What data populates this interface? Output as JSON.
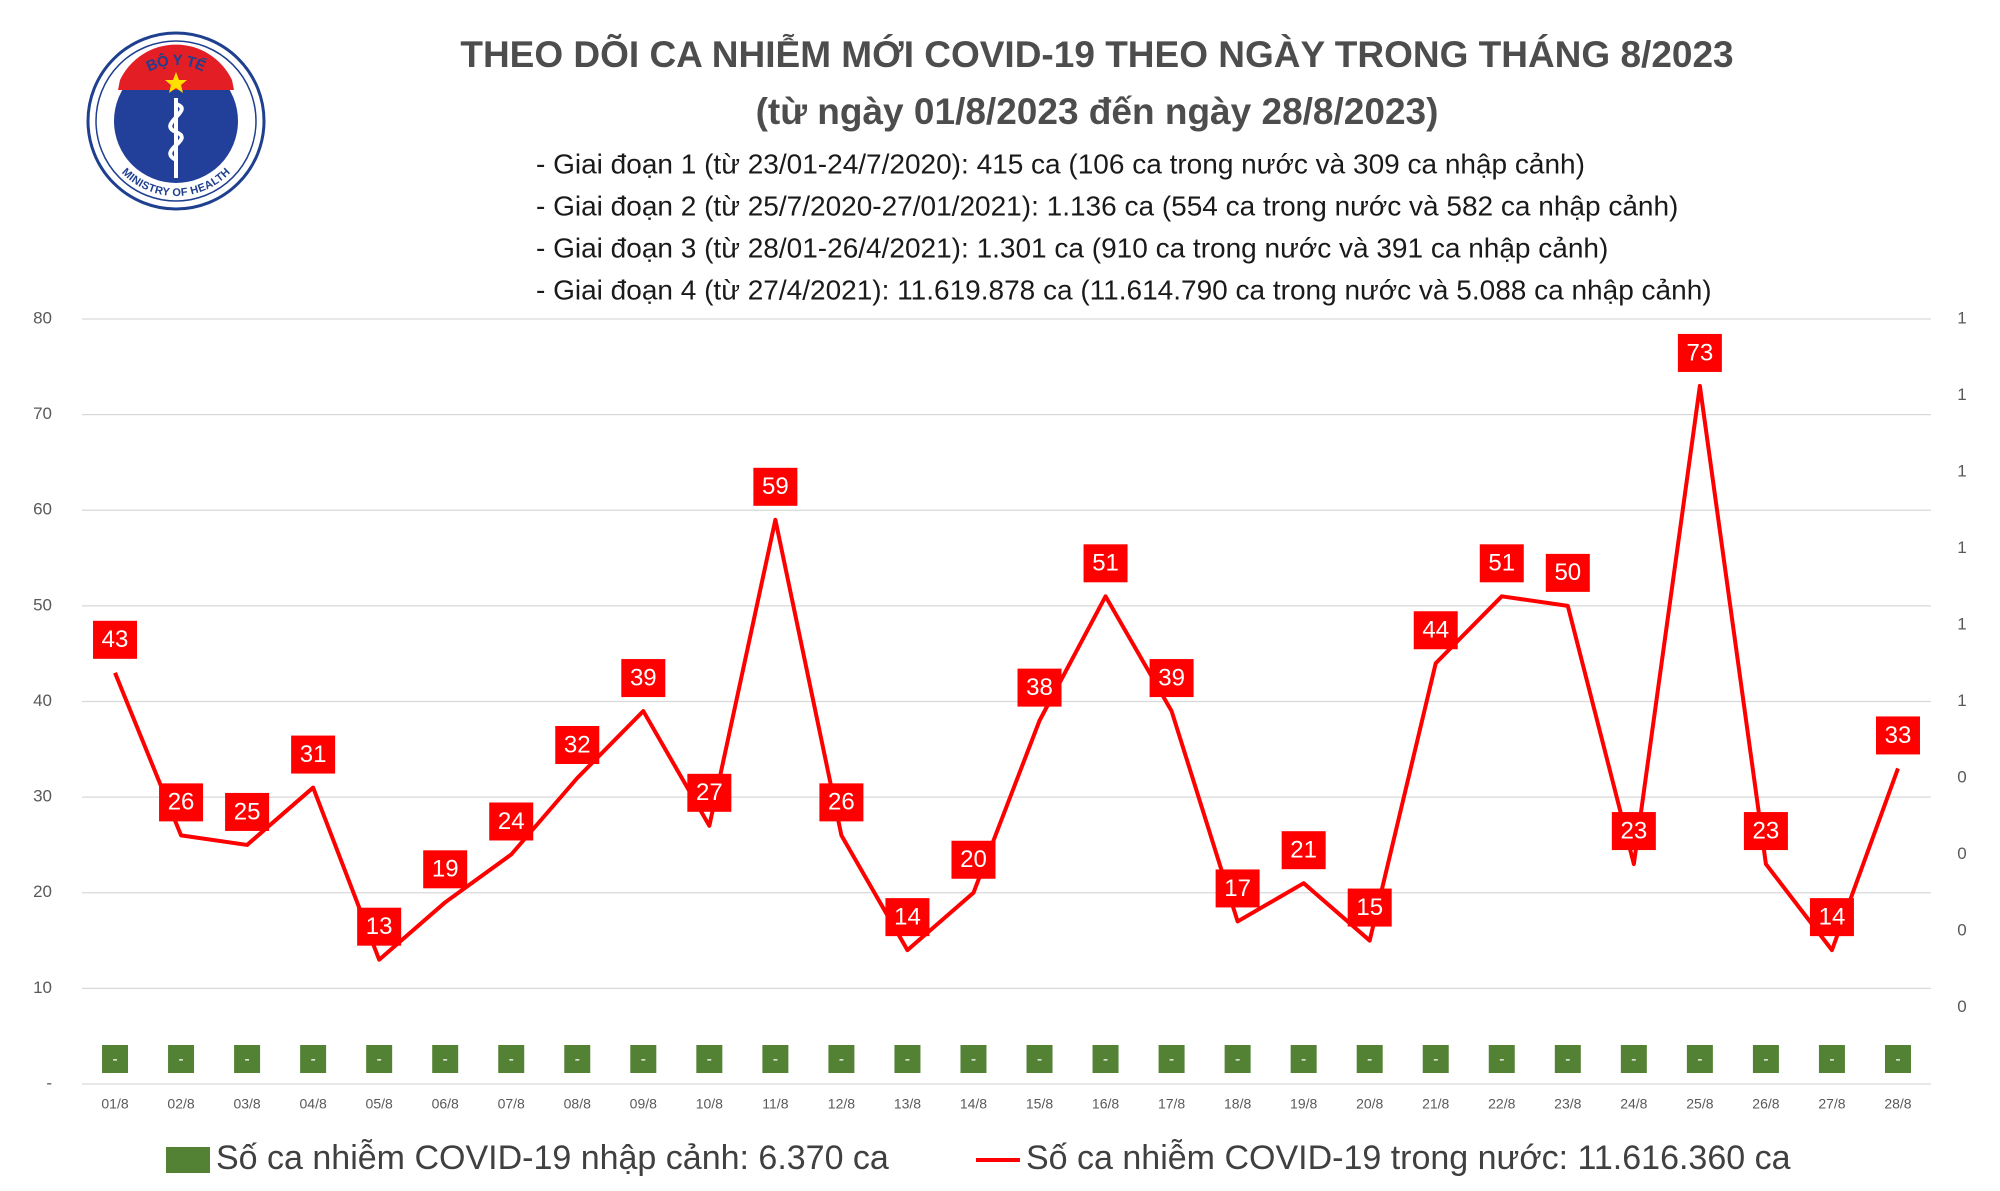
{
  "logo": {
    "top": "BỘ Y TẾ",
    "bottom": "MINISTRY OF HEALTH"
  },
  "chart_data": {
    "type": "combo",
    "title": "THEO DÕI CA NHIỄM MỚI COVID-19 THEO NGÀY TRONG THÁNG 8/2023",
    "subtitle": "(từ ngày 01/8/2023 đến ngày 28/8/2023)",
    "notes": [
      "- Giai đoạn 1 (từ 23/01-24/7/2020): 415 ca (106 ca trong nước và 309 ca nhập cảnh)",
      "- Giai đoạn 2 (từ 25/7/2020-27/01/2021): 1.136 ca (554 ca trong nước và 582 ca nhập cảnh)",
      "- Giai đoạn 3 (từ 28/01-26/4/2021): 1.301 ca (910 ca trong nước và 391 ca nhập cảnh)",
      "- Giai đoạn 4 (từ 27/4/2021): 11.619.878 ca (11.614.790 ca trong nước và 5.088 ca nhập cảnh)"
    ],
    "categories": [
      "01/8",
      "02/8",
      "03/8",
      "04/8",
      "05/8",
      "06/8",
      "07/8",
      "08/8",
      "09/8",
      "10/8",
      "11/8",
      "12/8",
      "13/8",
      "14/8",
      "15/8",
      "16/8",
      "17/8",
      "18/8",
      "19/8",
      "20/8",
      "21/8",
      "22/8",
      "23/8",
      "24/8",
      "25/8",
      "26/8",
      "27/8",
      "28/8"
    ],
    "series": [
      {
        "name": "Số ca nhiễm COVID-19 nhập cảnh: 6.370 ca",
        "type": "bar",
        "color": "#548235",
        "axis": "y2",
        "values": [
          0,
          0,
          0,
          0,
          0,
          0,
          0,
          0,
          0,
          0,
          0,
          0,
          0,
          0,
          0,
          0,
          0,
          0,
          0,
          0,
          0,
          0,
          0,
          0,
          0,
          0,
          0,
          0
        ],
        "value_labels": [
          "-",
          "-",
          "-",
          "-",
          "-",
          "-",
          "-",
          "-",
          "-",
          "-",
          "-",
          "-",
          "-",
          "-",
          "-",
          "-",
          "-",
          "-",
          "-",
          "-",
          "-",
          "-",
          "-",
          "-",
          "-",
          "-",
          "-",
          "-"
        ]
      },
      {
        "name": "Số ca nhiễm COVID-19 trong nước: 11.616.360 ca",
        "type": "line",
        "color": "#ff0000",
        "values": [
          43,
          26,
          25,
          31,
          13,
          19,
          24,
          32,
          39,
          27,
          59,
          26,
          14,
          20,
          38,
          51,
          39,
          17,
          21,
          15,
          44,
          51,
          50,
          23,
          73,
          23,
          14,
          33
        ]
      }
    ],
    "ylim": [
      0,
      80
    ],
    "yticks": [
      {
        "value": 0,
        "label": "-"
      },
      10,
      20,
      30,
      40,
      50,
      60,
      70,
      80
    ],
    "y2lim": [
      0,
      1
    ],
    "y2ticks": [
      {
        "value": 0.1,
        "label": "0"
      },
      {
        "value": 0.2,
        "label": "0"
      },
      {
        "value": 0.3,
        "label": "0"
      },
      {
        "value": 0.4,
        "label": "0"
      },
      {
        "value": 0.5,
        "label": "1"
      },
      {
        "value": 0.6,
        "label": "1"
      },
      {
        "value": 0.7,
        "label": "1"
      },
      {
        "value": 0.8,
        "label": "1"
      },
      {
        "value": 0.9,
        "label": "1"
      },
      {
        "value": 1.0,
        "label": "1"
      }
    ],
    "grid": true,
    "legend": "bottom"
  }
}
